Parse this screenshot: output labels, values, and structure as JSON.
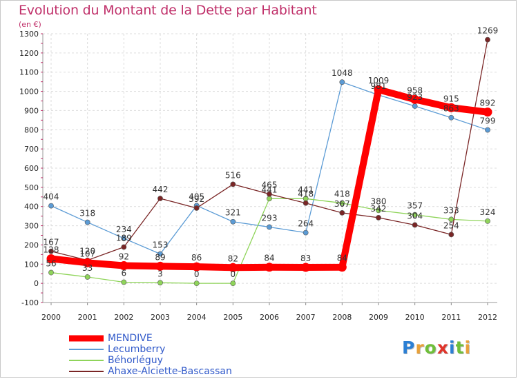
{
  "title": "Evolution du Montant de la Dette par Habitant",
  "subtitle": "(en €)",
  "logo": {
    "text": "Proxiti",
    "letter_colors": [
      "#2b7fd4",
      "#e8a13a",
      "#6fbf3a",
      "#e0342a",
      "#2b7fd4",
      "#6fbf3a",
      "#e8a13a"
    ]
  },
  "chart_data": {
    "type": "line",
    "title": "Evolution du Montant de la Dette par Habitant",
    "ylabel": "(en €)",
    "xlabel": "",
    "x": [
      "2000",
      "2001",
      "2002",
      "2003",
      "2004",
      "2005",
      "2006",
      "2007",
      "2008",
      "2009",
      "2010",
      "2011",
      "2012"
    ],
    "ylim": [
      -100,
      1300
    ],
    "yticks": [
      "-100",
      "0",
      "100",
      "200",
      "300",
      "400",
      "500",
      "600",
      "700",
      "800",
      "900",
      "1000",
      "1100",
      "1200",
      "1300"
    ],
    "grid": true,
    "legend_position": "bottom-left",
    "series": [
      {
        "name": "MENDIVE",
        "color": "#ff0000",
        "emphasis": true,
        "values": [
          128,
          107,
          92,
          89,
          86,
          82,
          84,
          83,
          84,
          1009,
          958,
          915,
          892
        ],
        "labels": [
          "128",
          "107",
          "92",
          "89",
          "86",
          "82",
          "84",
          "83",
          "84",
          "1009",
          "958",
          "915",
          "892"
        ]
      },
      {
        "name": "Lecumberry",
        "color": "#5b9bd5",
        "emphasis": false,
        "values": [
          404,
          318,
          234,
          153,
          405,
          321,
          293,
          264,
          1048,
          981,
          923,
          863,
          799
        ],
        "labels": [
          "404",
          "318",
          "234",
          "153",
          "405",
          "321",
          "293",
          "264",
          "1048",
          "981",
          "923",
          "863",
          "799"
        ]
      },
      {
        "name": "Béhorléguy",
        "color": "#8fd45a",
        "emphasis": false,
        "values": [
          56,
          33,
          6,
          3,
          0,
          0,
          441,
          441,
          418,
          380,
          357,
          333,
          324
        ],
        "labels": [
          "56",
          "33",
          "6",
          "3",
          "0",
          "0",
          "441",
          "441",
          "418",
          "380",
          "357",
          "333",
          "324"
        ]
      },
      {
        "name": "Ahaxe-Alciette-Bascassan",
        "color": "#7a2626",
        "emphasis": false,
        "values": [
          167,
          120,
          189,
          442,
          392,
          516,
          465,
          418,
          367,
          342,
          304,
          254,
          1269
        ],
        "labels": [
          "167",
          "120",
          "189",
          "442",
          "392",
          "516",
          "465",
          "418",
          "367",
          "342",
          "304",
          "254",
          "1269"
        ]
      }
    ]
  }
}
